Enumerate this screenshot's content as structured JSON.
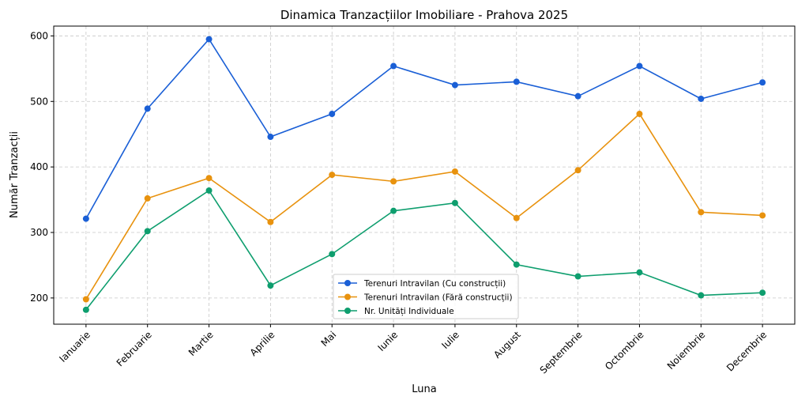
{
  "chart_data": {
    "type": "line",
    "title": "Dinamica Tranzacțiilor Imobiliare - Prahova 2025",
    "xlabel": "Luna",
    "ylabel": "Număr Tranzacții",
    "categories": [
      "Ianuarie",
      "Februarie",
      "Martie",
      "Aprilie",
      "Mai",
      "Iunie",
      "Iulie",
      "August",
      "Septembrie",
      "Octombrie",
      "Noiembrie",
      "Decembrie"
    ],
    "ylim": [
      160,
      615
    ],
    "yticks": [
      200,
      300,
      400,
      500,
      600
    ],
    "grid": true,
    "legend_position": "bottom-center",
    "series": [
      {
        "name": "Terenuri Intravilan (Cu construcții)",
        "color": "#1a5fd6",
        "values": [
          321,
          489,
          595,
          446,
          481,
          554,
          525,
          530,
          508,
          554,
          504,
          529
        ]
      },
      {
        "name": "Terenuri Intravilan (Fără construcții)",
        "color": "#e8920e",
        "values": [
          198,
          352,
          383,
          316,
          388,
          378,
          393,
          322,
          395,
          481,
          331,
          326
        ]
      },
      {
        "name": "Nr. Unități Individuale",
        "color": "#0e9e6e",
        "values": [
          182,
          302,
          364,
          219,
          267,
          333,
          345,
          251,
          233,
          239,
          204,
          208
        ]
      }
    ]
  }
}
